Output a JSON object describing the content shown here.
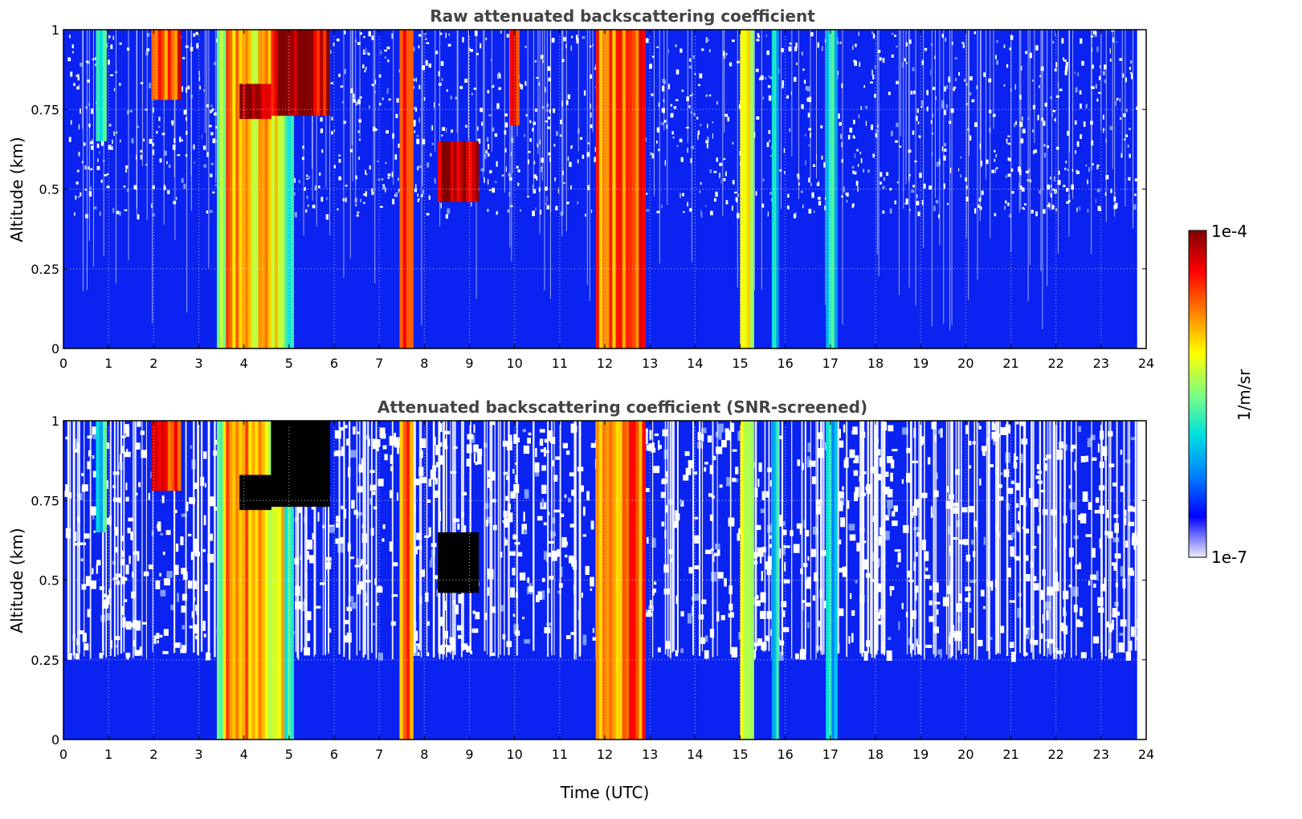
{
  "chart_data": [
    {
      "type": "heatmap",
      "title": "Raw attenuated backscattering coefficient",
      "xlabel": "",
      "ylabel": "Altitude (km)",
      "xlim": [
        0,
        24
      ],
      "ylim": [
        0,
        1
      ],
      "x_ticks": [
        "0",
        "1",
        "2",
        "3",
        "4",
        "5",
        "6",
        "7",
        "8",
        "9",
        "10",
        "11",
        "12",
        "13",
        "14",
        "15",
        "16",
        "17",
        "18",
        "19",
        "20",
        "21",
        "22",
        "23",
        "24"
      ],
      "y_ticks": [
        "0",
        "0.25",
        "0.5",
        "0.75",
        "1"
      ],
      "grid": true,
      "screened": false,
      "data_end_hour": 23.8,
      "features": [
        {
          "t0": 0.72,
          "t1": 0.95,
          "top": 1.0,
          "bottom": 0.65,
          "level": 0.35
        },
        {
          "t0": 1.95,
          "t1": 2.6,
          "top": 1.0,
          "bottom": 0.78,
          "level": 0.8
        },
        {
          "t0": 3.4,
          "t1": 3.6,
          "top": 1.0,
          "bottom": 0.0,
          "level": 0.55
        },
        {
          "t0": 3.6,
          "t1": 4.1,
          "top": 1.0,
          "bottom": 0.0,
          "level": 0.75
        },
        {
          "t0": 4.1,
          "t1": 4.9,
          "top": 1.0,
          "bottom": 0.0,
          "level": 0.65
        },
        {
          "t0": 4.9,
          "t1": 5.1,
          "top": 0.8,
          "bottom": 0.0,
          "level": 0.45
        },
        {
          "t0": 3.9,
          "t1": 4.6,
          "top": 0.83,
          "bottom": 0.72,
          "level": 1.0
        },
        {
          "t0": 4.6,
          "t1": 5.9,
          "top": 1.0,
          "bottom": 0.73,
          "level": 0.95
        },
        {
          "t0": 7.45,
          "t1": 7.75,
          "top": 1.0,
          "bottom": 0.0,
          "level": 0.78
        },
        {
          "t0": 8.3,
          "t1": 9.2,
          "top": 0.65,
          "bottom": 0.46,
          "level": 0.95
        },
        {
          "t0": 9.9,
          "t1": 10.1,
          "top": 1.0,
          "bottom": 0.7,
          "level": 0.9
        },
        {
          "t0": 11.8,
          "t1": 12.9,
          "top": 1.0,
          "bottom": 0.0,
          "level": 0.78
        },
        {
          "t0": 15.0,
          "t1": 15.3,
          "top": 1.0,
          "bottom": 0.0,
          "level": 0.6
        },
        {
          "t0": 15.7,
          "t1": 15.85,
          "top": 1.0,
          "bottom": 0.0,
          "level": 0.4
        },
        {
          "t0": 16.9,
          "t1": 17.15,
          "top": 1.0,
          "bottom": 0.0,
          "level": 0.35
        }
      ]
    },
    {
      "type": "heatmap",
      "title": "Attenuated backscattering coefficient (SNR-screened)",
      "xlabel": "Time (UTC)",
      "ylabel": "Altitude (km)",
      "xlim": [
        0,
        24
      ],
      "ylim": [
        0,
        1
      ],
      "x_ticks": [
        "0",
        "1",
        "2",
        "3",
        "4",
        "5",
        "6",
        "7",
        "8",
        "9",
        "10",
        "11",
        "12",
        "13",
        "14",
        "15",
        "16",
        "17",
        "18",
        "19",
        "20",
        "21",
        "22",
        "23",
        "24"
      ],
      "y_ticks": [
        "0",
        "0.25",
        "0.5",
        "0.75",
        "1"
      ],
      "grid": true,
      "screened": true,
      "data_end_hour": 23.8,
      "features": [
        {
          "t0": 0.72,
          "t1": 0.95,
          "top": 1.0,
          "bottom": 0.65,
          "level": 0.35
        },
        {
          "t0": 1.95,
          "t1": 2.6,
          "top": 1.0,
          "bottom": 0.78,
          "level": 0.8
        },
        {
          "t0": 3.4,
          "t1": 3.6,
          "top": 1.0,
          "bottom": 0.0,
          "level": 0.55
        },
        {
          "t0": 3.6,
          "t1": 4.1,
          "top": 1.0,
          "bottom": 0.0,
          "level": 0.75
        },
        {
          "t0": 4.1,
          "t1": 4.9,
          "top": 1.0,
          "bottom": 0.0,
          "level": 0.65
        },
        {
          "t0": 4.9,
          "t1": 5.1,
          "top": 0.8,
          "bottom": 0.0,
          "level": 0.45
        },
        {
          "t0": 3.9,
          "t1": 4.6,
          "top": 0.83,
          "bottom": 0.72,
          "level": 1.0
        },
        {
          "t0": 4.6,
          "t1": 5.9,
          "top": 1.0,
          "bottom": 0.73,
          "level": 1.0
        },
        {
          "t0": 7.45,
          "t1": 7.75,
          "top": 1.0,
          "bottom": 0.0,
          "level": 0.78
        },
        {
          "t0": 8.3,
          "t1": 9.2,
          "top": 0.65,
          "bottom": 0.46,
          "level": 1.0
        },
        {
          "t0": 11.8,
          "t1": 12.9,
          "top": 1.0,
          "bottom": 0.0,
          "level": 0.78
        },
        {
          "t0": 15.0,
          "t1": 15.3,
          "top": 1.0,
          "bottom": 0.0,
          "level": 0.6
        },
        {
          "t0": 15.7,
          "t1": 15.85,
          "top": 1.0,
          "bottom": 0.0,
          "level": 0.4
        },
        {
          "t0": 16.9,
          "t1": 17.15,
          "top": 1.0,
          "bottom": 0.0,
          "level": 0.35
        }
      ]
    }
  ],
  "colorbar": {
    "label": "1/m/sr",
    "max_label": "1e-4",
    "min_label": "1e-7",
    "colormap": "jet",
    "stops": [
      "#eeeeff",
      "#0000ff",
      "#0080ff",
      "#00e0e0",
      "#80ff80",
      "#ffff00",
      "#ff8000",
      "#ff0000",
      "#800000"
    ]
  },
  "colors": {
    "background": "#0a23f0",
    "screened_out": "#ffffff",
    "saturated_screened": "#000000",
    "title_text": "#444444"
  }
}
